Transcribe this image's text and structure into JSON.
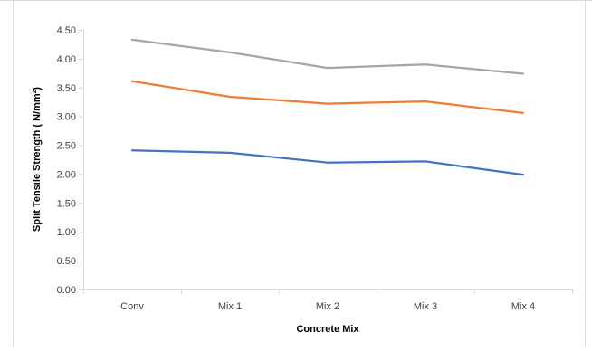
{
  "chart_data": {
    "type": "line",
    "categories": [
      "Conv",
      "Mix 1",
      "Mix 2",
      "Mix 3",
      "Mix 4"
    ],
    "series": [
      {
        "values": [
          2.41,
          2.37,
          2.2,
          2.22,
          1.99
        ],
        "color": "#4472c4"
      },
      {
        "values": [
          3.61,
          3.34,
          3.22,
          3.26,
          3.06
        ],
        "color": "#ed7d31"
      },
      {
        "values": [
          4.33,
          4.11,
          3.84,
          3.9,
          3.74
        ],
        "color": "#a5a5a5"
      }
    ],
    "xlabel": "Concrete Mix",
    "ylabel": "Split Tensile Strength ( N/mm²)",
    "ylim": [
      0,
      4.5
    ],
    "yticks": [
      "0.00",
      "0.50",
      "1.00",
      "1.50",
      "2.00",
      "2.50",
      "3.00",
      "3.50",
      "4.00",
      "4.50"
    ],
    "grid": false,
    "legend": "none"
  },
  "colors": {
    "axis": "#d9d9d9",
    "frame": "#bfbfbf",
    "text": "#404040"
  }
}
